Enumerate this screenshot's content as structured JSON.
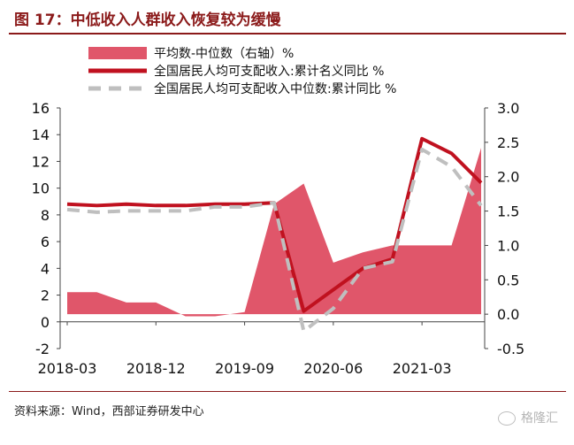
{
  "title": "图 17：中低收入人群收入恢复较为缓慢",
  "source": "资料来源：Wind，西部证券研发中心",
  "watermark": "格隆汇",
  "chart_data": {
    "type": "line",
    "x_categories": [
      "2018-03",
      "2018-06",
      "2018-09",
      "2018-12",
      "2019-03",
      "2019-06",
      "2019-09",
      "2019-12",
      "2020-03",
      "2020-06",
      "2020-09",
      "2020-12",
      "2021-03",
      "2021-06",
      "2021-09"
    ],
    "x_tick_labels": [
      "2018-03",
      "2018-12",
      "2019-09",
      "2020-06",
      "2021-03"
    ],
    "left_axis": {
      "ylim": [
        -2,
        16
      ],
      "ticks": [
        "16",
        "14",
        "12",
        "10",
        "8",
        "6",
        "4",
        "2",
        "0",
        "-2"
      ]
    },
    "right_axis": {
      "ylim": [
        -0.5,
        3.0
      ],
      "ticks": [
        "3.0",
        "2.5",
        "2.0",
        "1.5",
        "1.0",
        "0.5",
        "0.0",
        "-0.5"
      ]
    },
    "legend_position": "top-left",
    "series": [
      {
        "name": "平均数-中位数（右轴）%",
        "type": "area",
        "axis": "right",
        "color": "#E0566A",
        "values": [
          0.32,
          0.32,
          0.17,
          0.17,
          -0.03,
          -0.03,
          0.03,
          1.6,
          1.9,
          0.75,
          0.9,
          1.0,
          1.0,
          1.0,
          2.42
        ]
      },
      {
        "name": "全国居民人均可支配收入:累计名义同比 %",
        "type": "line",
        "axis": "left",
        "color": "#C0111F",
        "values": [
          8.8,
          8.7,
          8.8,
          8.7,
          8.7,
          8.8,
          8.8,
          8.9,
          0.8,
          2.4,
          4.0,
          4.7,
          13.7,
          12.6,
          10.4
        ]
      },
      {
        "name": "全国居民人均可支配收入中位数:累计同比 %",
        "type": "line",
        "axis": "left",
        "color": "#BFBFBF",
        "dashed": true,
        "values": [
          8.4,
          8.2,
          8.3,
          8.3,
          8.3,
          8.6,
          8.6,
          8.9,
          -0.7,
          1.0,
          4.0,
          4.5,
          12.9,
          11.6,
          8.7
        ]
      }
    ]
  }
}
